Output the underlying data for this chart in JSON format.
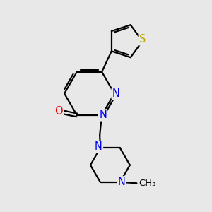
{
  "background_color": "#e8e8e8",
  "atom_colors": {
    "C": "#000000",
    "N": "#0000ee",
    "O": "#ee0000",
    "S": "#bbaa00"
  },
  "bond_color": "#000000",
  "bond_width": 1.6,
  "font_size_atom": 10.5
}
